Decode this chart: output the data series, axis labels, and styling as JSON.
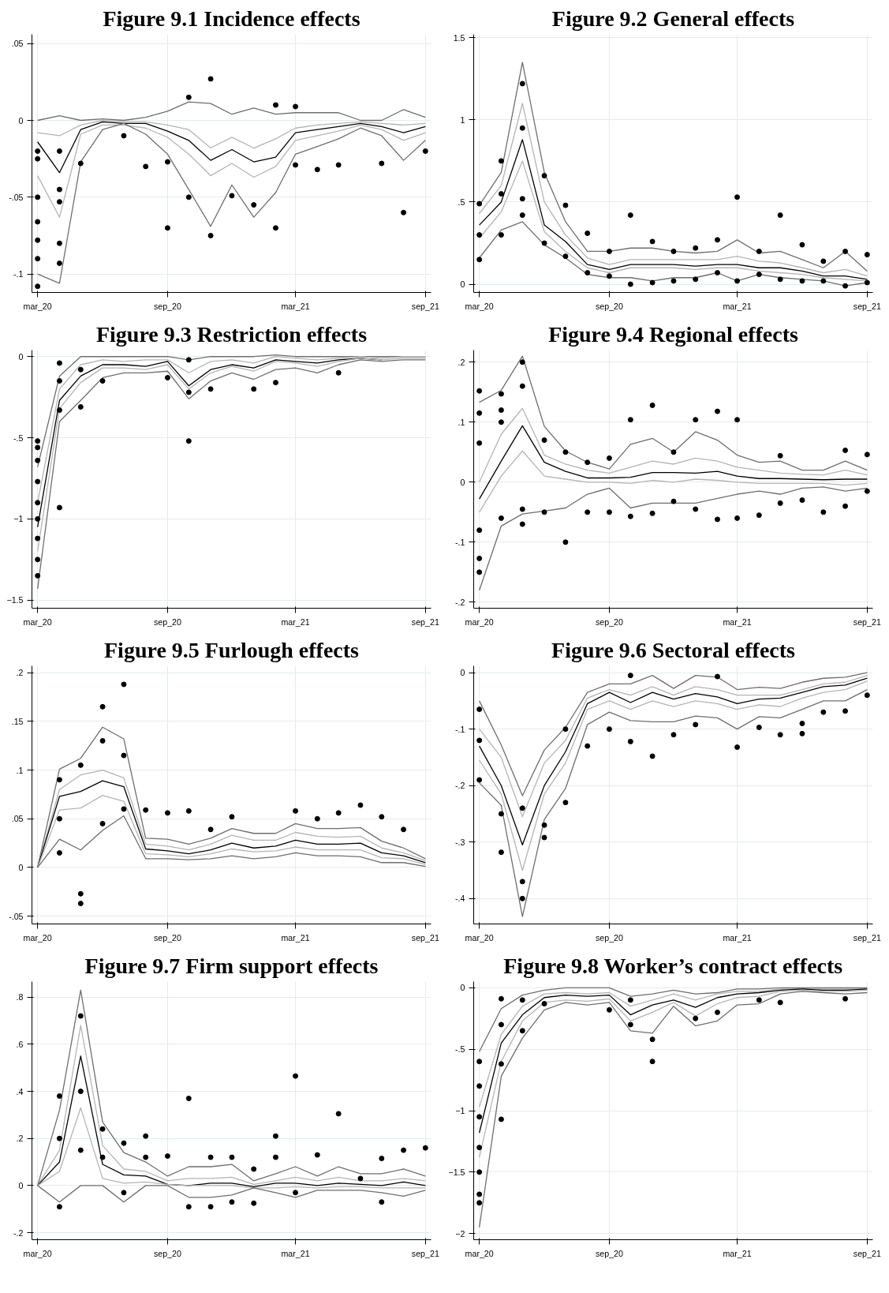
{
  "chart_data": [
    {
      "type": "line",
      "title": "Figure 9.1 Incidence effects",
      "x": [
        "2020-03",
        "2020-04",
        "2020-05",
        "2020-06",
        "2020-07",
        "2020-08",
        "2020-09",
        "2020-10",
        "2020-11",
        "2020-12",
        "2021-01",
        "2021-02",
        "2021-03",
        "2021-04",
        "2021-05",
        "2021-06",
        "2021-07",
        "2021-08",
        "2021-09"
      ],
      "xlim": [
        "2020-02-22",
        "2021-09-09"
      ],
      "xticks": [
        {
          "value": "2020-03",
          "label": "mar_20"
        },
        {
          "value": "2020-09",
          "label": "sep_20"
        },
        {
          "value": "2021-03",
          "label": "mar_21"
        },
        {
          "value": "2021-09",
          "label": "sep_21"
        }
      ],
      "ylim": [
        -0.112,
        0.056
      ],
      "yticks": [
        {
          "value": -0.1,
          "label": "-.1"
        },
        {
          "value": -0.05,
          "label": "-.05"
        },
        0,
        {
          "value": 0.05,
          "label": ".05"
        }
      ],
      "grid": true,
      "series": [
        {
          "color": "#6e6e6e",
          "values": [
            0.0,
            0.003,
            0,
            0.001,
            0,
            0.002,
            0.006,
            0.012,
            0.011,
            0.004,
            0.008,
            0.004,
            0.005,
            0.005,
            0.005,
            0,
            0,
            0.007,
            0.002
          ]
        },
        {
          "color": "#b4b4b4",
          "values": [
            -0.008,
            -0.01,
            -0.003,
            0,
            -0.001,
            -0.001,
            -0.003,
            -0.006,
            -0.018,
            -0.011,
            -0.018,
            -0.012,
            -0.005,
            -0.003,
            -0.002,
            -0.001,
            -0.002,
            -0.003,
            -0.002
          ]
        },
        {
          "color": "#000000",
          "values": [
            -0.014,
            -0.034,
            -0.006,
            -0.001,
            -0.002,
            -0.002,
            -0.007,
            -0.013,
            -0.026,
            -0.019,
            -0.027,
            -0.024,
            -0.008,
            -0.006,
            -0.004,
            -0.002,
            -0.004,
            -0.008,
            -0.004
          ]
        },
        {
          "color": "#b4b4b4",
          "values": [
            -0.036,
            -0.063,
            -0.009,
            -0.003,
            -0.003,
            -0.005,
            -0.011,
            -0.022,
            -0.036,
            -0.028,
            -0.037,
            -0.03,
            -0.013,
            -0.01,
            -0.007,
            -0.003,
            -0.006,
            -0.013,
            -0.008
          ]
        },
        {
          "color": "#6e6e6e",
          "values": [
            -0.1,
            -0.106,
            -0.027,
            -0.006,
            -0.002,
            -0.009,
            -0.022,
            -0.045,
            -0.069,
            -0.042,
            -0.063,
            -0.047,
            -0.022,
            -0.017,
            -0.012,
            -0.005,
            -0.01,
            -0.026,
            -0.013
          ]
        },
        {
          "type": "scatter",
          "marker": "circle",
          "color": "#000000",
          "x": [
            "2020-03",
            "2020-03",
            "2020-03",
            "2020-03",
            "2020-03",
            "2020-03",
            "2020-03",
            "2020-04",
            "2020-04",
            "2020-04",
            "2020-04",
            "2020-04",
            "2020-05",
            "2020-07",
            "2020-08",
            "2020-09",
            "2020-09",
            "2020-10",
            "2020-10",
            "2020-11",
            "2020-11",
            "2020-12",
            "2021-01",
            "2021-02",
            "2021-02",
            "2021-03",
            "2021-03",
            "2021-04",
            "2021-05",
            "2021-07",
            "2021-08",
            "2021-09"
          ],
          "values": [
            -0.108,
            -0.09,
            -0.078,
            -0.066,
            -0.05,
            -0.025,
            -0.02,
            -0.093,
            -0.08,
            -0.045,
            -0.02,
            -0.053,
            -0.028,
            -0.01,
            -0.03,
            -0.07,
            -0.027,
            0.015,
            -0.05,
            0.027,
            -0.075,
            -0.049,
            -0.055,
            -0.07,
            0.01,
            -0.029,
            0.009,
            -0.032,
            -0.029,
            -0.028,
            -0.06,
            -0.02
          ]
        }
      ]
    },
    {
      "type": "line",
      "title": "Figure 9.2 General effects",
      "x": [
        "2020-03",
        "2020-04",
        "2020-05",
        "2020-06",
        "2020-07",
        "2020-08",
        "2020-09",
        "2020-10",
        "2020-11",
        "2020-12",
        "2021-01",
        "2021-02",
        "2021-03",
        "2021-04",
        "2021-05",
        "2021-06",
        "2021-07",
        "2021-08",
        "2021-09"
      ],
      "xlim": [
        "2020-02-22",
        "2021-09-09"
      ],
      "xticks": [
        {
          "value": "2020-03",
          "label": "mar_20"
        },
        {
          "value": "2020-09",
          "label": "sep_20"
        },
        {
          "value": "2021-03",
          "label": "mar_21"
        },
        {
          "value": "2021-09",
          "label": "sep_21"
        }
      ],
      "ylim": [
        -0.05,
        1.52
      ],
      "yticks": [
        0,
        {
          "value": 0.5,
          "label": ".5"
        },
        1,
        1.5
      ],
      "grid": true,
      "series": [
        {
          "color": "#6e6e6e",
          "values": [
            0.48,
            0.68,
            1.35,
            0.68,
            0.38,
            0.2,
            0.2,
            0.22,
            0.22,
            0.2,
            0.19,
            0.2,
            0.27,
            0.19,
            0.2,
            0.15,
            0.1,
            0.2,
            0.08
          ]
        },
        {
          "color": "#b4b4b4",
          "values": [
            0.43,
            0.6,
            1.1,
            0.5,
            0.3,
            0.16,
            0.12,
            0.15,
            0.15,
            0.15,
            0.15,
            0.15,
            0.17,
            0.14,
            0.13,
            0.1,
            0.07,
            0.09,
            0.05
          ]
        },
        {
          "color": "#000000",
          "values": [
            0.36,
            0.5,
            0.88,
            0.36,
            0.26,
            0.12,
            0.09,
            0.12,
            0.12,
            0.12,
            0.11,
            0.12,
            0.12,
            0.1,
            0.1,
            0.08,
            0.05,
            0.05,
            0.03
          ]
        },
        {
          "color": "#b4b4b4",
          "values": [
            0.28,
            0.44,
            0.75,
            0.32,
            0.2,
            0.1,
            0.07,
            0.1,
            0.1,
            0.1,
            0.09,
            0.1,
            0.1,
            0.08,
            0.07,
            0.06,
            0.04,
            0.03,
            0.02
          ]
        },
        {
          "color": "#6e6e6e",
          "values": [
            0.16,
            0.33,
            0.38,
            0.24,
            0.16,
            0.06,
            0.04,
            0.04,
            0.02,
            0.04,
            0.04,
            0.07,
            0.02,
            0.06,
            0.04,
            0.03,
            0.02,
            -0.01,
            0.01
          ]
        },
        {
          "type": "scatter",
          "marker": "circle",
          "color": "#000000",
          "x": [
            "2020-03",
            "2020-03",
            "2020-03",
            "2020-04",
            "2020-04",
            "2020-04",
            "2020-05",
            "2020-05",
            "2020-05",
            "2020-05",
            "2020-06",
            "2020-06",
            "2020-07",
            "2020-07",
            "2020-08",
            "2020-08",
            "2020-09",
            "2020-09",
            "2020-10",
            "2020-10",
            "2020-11",
            "2020-11",
            "2020-12",
            "2020-12",
            "2021-01",
            "2021-01",
            "2021-02",
            "2021-02",
            "2021-03",
            "2021-03",
            "2021-04",
            "2021-04",
            "2021-05",
            "2021-05",
            "2021-06",
            "2021-06",
            "2021-07",
            "2021-07",
            "2021-08",
            "2021-08",
            "2021-09",
            "2021-09"
          ],
          "values": [
            0.49,
            0.15,
            0.3,
            0.75,
            0.3,
            0.55,
            1.22,
            0.95,
            0.52,
            0.42,
            0.66,
            0.25,
            0.48,
            0.17,
            0.31,
            0.07,
            0.2,
            0.05,
            0.42,
            0.0,
            0.26,
            0.01,
            0.2,
            0.02,
            0.22,
            0.03,
            0.27,
            0.07,
            0.53,
            0.02,
            0.2,
            0.06,
            0.42,
            0.03,
            0.24,
            0.02,
            0.14,
            0.02,
            0.2,
            -0.01,
            0.18,
            0.01
          ]
        }
      ]
    },
    {
      "type": "line",
      "title": "Figure 9.3 Restriction effects",
      "x": [
        "2020-03",
        "2020-04",
        "2020-05",
        "2020-06",
        "2020-07",
        "2020-08",
        "2020-09",
        "2020-10",
        "2020-11",
        "2020-12",
        "2021-01",
        "2021-02",
        "2021-03",
        "2021-04",
        "2021-05",
        "2021-06",
        "2021-07",
        "2021-08",
        "2021-09"
      ],
      "xlim": [
        "2020-02-22",
        "2021-09-09"
      ],
      "xticks": [
        {
          "value": "2020-03",
          "label": "mar_20"
        },
        {
          "value": "2020-09",
          "label": "sep_20"
        },
        {
          "value": "2021-03",
          "label": "mar_21"
        },
        {
          "value": "2021-09",
          "label": "sep_21"
        }
      ],
      "ylim": [
        -1.55,
        0.04
      ],
      "yticks": [
        -1.5,
        -1,
        {
          "value": -0.5,
          "label": "-.5"
        },
        0
      ],
      "grid": true,
      "series": [
        {
          "color": "#6e6e6e",
          "values": [
            -0.68,
            -0.12,
            0,
            0,
            0,
            0,
            0,
            -0.02,
            0,
            0,
            0,
            0.01,
            0,
            0,
            0,
            0,
            0,
            0,
            0
          ]
        },
        {
          "color": "#b4b4b4",
          "values": [
            -0.9,
            -0.2,
            -0.05,
            -0.02,
            -0.03,
            -0.02,
            -0.02,
            -0.1,
            -0.03,
            -0.02,
            -0.04,
            0,
            -0.01,
            -0.02,
            -0.01,
            0,
            -0.01,
            0,
            0
          ]
        },
        {
          "color": "#000000",
          "values": [
            -1.05,
            -0.27,
            -0.12,
            -0.05,
            -0.05,
            -0.06,
            -0.03,
            -0.18,
            -0.08,
            -0.05,
            -0.07,
            -0.02,
            -0.03,
            -0.04,
            -0.02,
            -0.01,
            -0.02,
            null,
            null
          ]
        },
        {
          "color": "#b4b4b4",
          "values": [
            -1.2,
            -0.32,
            -0.16,
            -0.07,
            -0.07,
            -0.08,
            -0.05,
            -0.2,
            -0.1,
            -0.06,
            -0.09,
            -0.03,
            -0.04,
            -0.06,
            -0.03,
            -0.01,
            -0.02,
            -0.01,
            -0.01
          ]
        },
        {
          "color": "#6e6e6e",
          "values": [
            -1.43,
            -0.4,
            -0.27,
            -0.13,
            -0.1,
            -0.1,
            -0.09,
            -0.26,
            -0.15,
            -0.1,
            -0.14,
            -0.08,
            -0.07,
            -0.1,
            -0.05,
            -0.02,
            -0.03,
            -0.02,
            -0.02
          ]
        },
        {
          "type": "scatter",
          "marker": "circle",
          "color": "#000000",
          "x": [
            "2020-03",
            "2020-03",
            "2020-03",
            "2020-03",
            "2020-03",
            "2020-03",
            "2020-03",
            "2020-03",
            "2020-03",
            "2020-04",
            "2020-04",
            "2020-04",
            "2020-04",
            "2020-05",
            "2020-05",
            "2020-06",
            "2020-09",
            "2020-10",
            "2020-10",
            "2020-10",
            "2020-11",
            "2021-01",
            "2021-02",
            "2021-05"
          ],
          "values": [
            -0.52,
            -0.56,
            -0.64,
            -0.77,
            -0.9,
            -1.0,
            -1.12,
            -1.25,
            -1.35,
            -0.04,
            -0.93,
            -0.15,
            -0.33,
            -0.31,
            -0.08,
            -0.15,
            -0.13,
            -0.52,
            -0.22,
            -0.02,
            -0.2,
            -0.2,
            -0.16,
            -0.1
          ]
        }
      ]
    },
    {
      "type": "line",
      "title": "Figure 9.4 Regional effects",
      "x": [
        "2020-03",
        "2020-04",
        "2020-05",
        "2020-06",
        "2020-07",
        "2020-08",
        "2020-09",
        "2020-10",
        "2020-11",
        "2020-12",
        "2021-01",
        "2021-02",
        "2021-03",
        "2021-04",
        "2021-05",
        "2021-06",
        "2021-07",
        "2021-08",
        "2021-09"
      ],
      "xlim": [
        "2020-02-22",
        "2021-09-09"
      ],
      "xticks": [
        {
          "value": "2020-03",
          "label": "mar_20"
        },
        {
          "value": "2020-09",
          "label": "sep_20"
        },
        {
          "value": "2021-03",
          "label": "mar_21"
        },
        {
          "value": "2021-09",
          "label": "sep_21"
        }
      ],
      "ylim": [
        -0.21,
        0.22
      ],
      "yticks": [
        {
          "value": -0.2,
          "label": "-.2"
        },
        {
          "value": -0.1,
          "label": "-.1"
        },
        0,
        {
          "value": 0.1,
          "label": ".1"
        },
        {
          "value": 0.2,
          "label": ".2"
        }
      ],
      "grid": true,
      "series": [
        {
          "color": "#6e6e6e",
          "values": [
            0.133,
            0.153,
            0.21,
            0.093,
            0.052,
            0.033,
            0.022,
            0.063,
            0.073,
            0.05,
            0.084,
            0.07,
            0.045,
            0.033,
            0.035,
            0.02,
            0.02,
            0.035,
            0.02
          ]
        },
        {
          "color": "#b4b4b4",
          "values": [
            0.0,
            0.08,
            0.123,
            0.045,
            0.03,
            0.02,
            0.015,
            0.025,
            0.035,
            0.03,
            0.04,
            0.035,
            0.025,
            0.02,
            0.015,
            0.013,
            0.012,
            0.02,
            0.012
          ]
        },
        {
          "color": "#000000",
          "values": [
            -0.028,
            0.035,
            0.094,
            0.033,
            0.018,
            0.007,
            0.007,
            0.008,
            0.016,
            0.016,
            0.015,
            0.018,
            0.01,
            0.006,
            0.006,
            0.005,
            0.004,
            0.005,
            0.005
          ]
        },
        {
          "color": "#b4b4b4",
          "values": [
            -0.05,
            0.01,
            0.052,
            0.01,
            0.005,
            0.0,
            0.0,
            -0.002,
            0.003,
            0.0,
            0.005,
            0.003,
            0.0,
            -0.002,
            -0.002,
            -0.002,
            -0.002,
            -0.005,
            -0.002
          ]
        },
        {
          "color": "#6e6e6e",
          "values": [
            -0.18,
            -0.073,
            -0.053,
            -0.048,
            -0.043,
            -0.02,
            -0.01,
            -0.043,
            -0.035,
            -0.035,
            -0.035,
            -0.027,
            -0.02,
            -0.015,
            -0.02,
            -0.01,
            -0.008,
            -0.015,
            -0.01
          ]
        },
        {
          "type": "scatter",
          "marker": "circle",
          "color": "#000000",
          "x": [
            "2020-03",
            "2020-03",
            "2020-03",
            "2020-03",
            "2020-03",
            "2020-03",
            "2020-04",
            "2020-04",
            "2020-04",
            "2020-04",
            "2020-05",
            "2020-05",
            "2020-05",
            "2020-05",
            "2020-06",
            "2020-06",
            "2020-07",
            "2020-07",
            "2020-08",
            "2020-08",
            "2020-09",
            "2020-09",
            "2020-10",
            "2020-10",
            "2020-11",
            "2020-11",
            "2020-12",
            "2020-12",
            "2021-01",
            "2021-01",
            "2021-02",
            "2021-02",
            "2021-03",
            "2021-03",
            "2021-04",
            "2021-05",
            "2021-05",
            "2021-06",
            "2021-07",
            "2021-08",
            "2021-08",
            "2021-09",
            "2021-09"
          ],
          "values": [
            0.152,
            0.115,
            0.065,
            -0.08,
            -0.127,
            -0.15,
            0.147,
            0.12,
            0.1,
            -0.06,
            0.2,
            0.16,
            -0.045,
            -0.07,
            0.07,
            -0.05,
            0.05,
            -0.1,
            -0.05,
            0.033,
            0.04,
            -0.05,
            0.104,
            -0.057,
            0.128,
            -0.052,
            0.05,
            -0.032,
            0.104,
            -0.045,
            0.118,
            -0.062,
            0.104,
            -0.06,
            -0.055,
            0.044,
            -0.035,
            -0.03,
            -0.05,
            0.053,
            -0.04,
            0.046,
            -0.015
          ]
        }
      ]
    },
    {
      "type": "line",
      "title": "Figure 9.5 Furlough effects",
      "x": [
        "2020-03",
        "2020-04",
        "2020-05",
        "2020-06",
        "2020-07",
        "2020-08",
        "2020-09",
        "2020-10",
        "2020-11",
        "2020-12",
        "2021-01",
        "2021-02",
        "2021-03",
        "2021-04",
        "2021-05",
        "2021-06",
        "2021-07",
        "2021-08",
        "2021-09"
      ],
      "xlim": [
        "2020-02-22",
        "2021-09-09"
      ],
      "xticks": [
        {
          "value": "2020-03",
          "label": "mar_20"
        },
        {
          "value": "2020-09",
          "label": "sep_20"
        },
        {
          "value": "2021-03",
          "label": "mar_21"
        },
        {
          "value": "2021-09",
          "label": "sep_21"
        }
      ],
      "ylim": [
        -0.058,
        0.207
      ],
      "yticks": [
        {
          "value": -0.05,
          "label": "-.05"
        },
        0,
        {
          "value": 0.05,
          "label": ".05"
        },
        {
          "value": 0.1,
          "label": ".1"
        },
        {
          "value": 0.15,
          "label": ".15"
        },
        {
          "value": 0.2,
          "label": ".2"
        }
      ],
      "grid": true,
      "series": [
        {
          "color": "#6e6e6e",
          "values": [
            0,
            0.101,
            0.112,
            0.144,
            0.132,
            0.03,
            0.029,
            0.024,
            0.03,
            0.04,
            0.035,
            0.035,
            0.045,
            0.04,
            0.04,
            0.041,
            0.027,
            0.02,
            0.009
          ]
        },
        {
          "color": "#b4b4b4",
          "values": [
            0,
            0.08,
            0.095,
            0.1,
            0.092,
            0.024,
            0.022,
            0.018,
            0.024,
            0.033,
            0.028,
            0.028,
            0.036,
            0.032,
            0.031,
            0.032,
            0.02,
            0.015,
            0.007
          ]
        },
        {
          "color": "#000000",
          "values": [
            0,
            0.073,
            0.078,
            0.089,
            0.083,
            0.019,
            0.017,
            0.014,
            0.018,
            0.025,
            0.02,
            0.022,
            0.028,
            0.024,
            0.024,
            0.025,
            0.015,
            0.012,
            0.005
          ]
        },
        {
          "color": "#b4b4b4",
          "values": [
            0,
            0.059,
            0.061,
            0.074,
            0.068,
            0.014,
            0.013,
            0.011,
            0.014,
            0.019,
            0.016,
            0.017,
            0.021,
            0.018,
            0.018,
            0.018,
            0.01,
            0.009,
            0.003
          ]
        },
        {
          "color": "#6e6e6e",
          "values": [
            0,
            0.029,
            0.018,
            0.038,
            0.053,
            0.009,
            0.009,
            0.008,
            0.009,
            0.012,
            0.009,
            0.011,
            0.015,
            0.012,
            0.012,
            0.011,
            0.005,
            0.005,
            0.001
          ]
        },
        {
          "type": "scatter",
          "marker": "circle",
          "color": "#000000",
          "x": [
            "2020-04",
            "2020-04",
            "2020-04",
            "2020-05",
            "2020-05",
            "2020-05",
            "2020-06",
            "2020-06",
            "2020-06",
            "2020-07",
            "2020-07",
            "2020-07",
            "2020-08",
            "2020-09",
            "2020-10",
            "2020-11",
            "2020-12",
            "2021-03",
            "2021-04",
            "2021-05",
            "2021-06",
            "2021-07",
            "2021-08"
          ],
          "values": [
            0.09,
            0.015,
            0.05,
            0.105,
            -0.027,
            -0.037,
            0.165,
            0.13,
            0.045,
            0.188,
            0.115,
            0.06,
            0.059,
            0.056,
            0.058,
            0.039,
            0.052,
            0.058,
            0.05,
            0.056,
            0.064,
            0.052,
            0.039
          ]
        }
      ]
    },
    {
      "type": "line",
      "title": "Figure 9.6 Sectoral effects",
      "x": [
        "2020-03",
        "2020-04",
        "2020-05",
        "2020-06",
        "2020-07",
        "2020-08",
        "2020-09",
        "2020-10",
        "2020-11",
        "2020-12",
        "2021-01",
        "2021-02",
        "2021-03",
        "2021-04",
        "2021-05",
        "2021-06",
        "2021-07",
        "2021-08",
        "2021-09"
      ],
      "xlim": [
        "2020-02-22",
        "2021-09-09"
      ],
      "xticks": [
        {
          "value": "2020-03",
          "label": "mar_20"
        },
        {
          "value": "2020-09",
          "label": "sep_20"
        },
        {
          "value": "2021-03",
          "label": "mar_21"
        },
        {
          "value": "2021-09",
          "label": "sep_21"
        }
      ],
      "ylim": [
        -0.445,
        0.012
      ],
      "yticks": [
        {
          "value": -0.4,
          "label": "-.4"
        },
        {
          "value": -0.3,
          "label": "-.3"
        },
        {
          "value": -0.2,
          "label": "-.2"
        },
        {
          "value": -0.1,
          "label": "-.1"
        },
        0
      ],
      "grid": true,
      "series": [
        {
          "color": "#6e6e6e",
          "values": [
            -0.05,
            -0.128,
            -0.218,
            -0.137,
            -0.097,
            -0.035,
            -0.02,
            -0.02,
            -0.005,
            -0.028,
            -0.005,
            -0.008,
            -0.03,
            -0.026,
            -0.028,
            -0.017,
            -0.01,
            -0.008,
            0.0
          ]
        },
        {
          "color": "#b4b4b4",
          "values": [
            -0.1,
            -0.15,
            -0.255,
            -0.16,
            -0.12,
            -0.045,
            -0.03,
            -0.04,
            -0.025,
            -0.04,
            -0.025,
            -0.03,
            -0.04,
            -0.04,
            -0.04,
            -0.03,
            -0.02,
            -0.017,
            -0.005
          ]
        },
        {
          "color": "#000000",
          "values": [
            -0.13,
            -0.2,
            -0.305,
            -0.2,
            -0.14,
            -0.055,
            -0.035,
            -0.053,
            -0.035,
            -0.047,
            -0.037,
            -0.043,
            -0.055,
            -0.047,
            -0.045,
            -0.035,
            -0.025,
            -0.022,
            -0.01
          ]
        },
        {
          "color": "#b4b4b4",
          "values": [
            -0.155,
            -0.215,
            -0.35,
            -0.215,
            -0.16,
            -0.065,
            -0.05,
            -0.065,
            -0.05,
            -0.06,
            -0.05,
            -0.055,
            -0.065,
            -0.057,
            -0.06,
            -0.045,
            -0.035,
            -0.03,
            -0.015
          ]
        },
        {
          "color": "#6e6e6e",
          "values": [
            -0.195,
            -0.235,
            -0.432,
            -0.26,
            -0.205,
            -0.092,
            -0.07,
            -0.085,
            -0.087,
            -0.087,
            -0.077,
            -0.08,
            -0.1,
            -0.078,
            -0.08,
            -0.065,
            -0.05,
            -0.05,
            -0.03
          ]
        },
        {
          "type": "scatter",
          "marker": "circle",
          "color": "#000000",
          "x": [
            "2020-03",
            "2020-03",
            "2020-03",
            "2020-04",
            "2020-04",
            "2020-05",
            "2020-05",
            "2020-05",
            "2020-06",
            "2020-06",
            "2020-07",
            "2020-07",
            "2020-08",
            "2020-09",
            "2020-10",
            "2020-10",
            "2020-11",
            "2020-12",
            "2021-01",
            "2021-02",
            "2021-03",
            "2021-04",
            "2021-05",
            "2021-06",
            "2021-06",
            "2021-07",
            "2021-08",
            "2021-09"
          ],
          "values": [
            -0.065,
            -0.12,
            -0.19,
            -0.318,
            -0.25,
            -0.24,
            -0.4,
            -0.37,
            -0.292,
            -0.27,
            -0.1,
            -0.23,
            -0.13,
            -0.1,
            -0.005,
            -0.122,
            -0.148,
            -0.11,
            -0.092,
            -0.007,
            -0.132,
            -0.097,
            -0.11,
            -0.108,
            -0.09,
            -0.07,
            -0.068,
            -0.04
          ]
        }
      ]
    },
    {
      "type": "line",
      "title": "Figure 9.7 Firm support effects",
      "x": [
        "2020-03",
        "2020-04",
        "2020-05",
        "2020-06",
        "2020-07",
        "2020-08",
        "2020-09",
        "2020-10",
        "2020-11",
        "2020-12",
        "2021-01",
        "2021-02",
        "2021-03",
        "2021-04",
        "2021-05",
        "2021-06",
        "2021-07",
        "2021-08",
        "2021-09"
      ],
      "xlim": [
        "2020-02-22",
        "2021-09-09"
      ],
      "xticks": [
        {
          "value": "2020-03",
          "label": "mar_20"
        },
        {
          "value": "2020-09",
          "label": "sep_20"
        },
        {
          "value": "2021-03",
          "label": "mar_21"
        },
        {
          "value": "2021-09",
          "label": "sep_21"
        }
      ],
      "ylim": [
        -0.23,
        0.866
      ],
      "yticks": [
        {
          "value": -0.2,
          "label": "-.2"
        },
        0,
        {
          "value": 0.2,
          "label": ".2"
        },
        {
          "value": 0.4,
          "label": ".4"
        },
        {
          "value": 0.6,
          "label": ".6"
        },
        {
          "value": 0.8,
          "label": ".8"
        }
      ],
      "grid": true,
      "series": [
        {
          "color": "#6e6e6e",
          "values": [
            0,
            0.32,
            0.83,
            0.27,
            0.14,
            0.1,
            0.04,
            0.08,
            0.08,
            0.09,
            0.02,
            0.05,
            0.08,
            0.04,
            0.08,
            0.05,
            0.05,
            0.07,
            0.04
          ]
        },
        {
          "color": "#b4b4b4",
          "values": [
            0,
            0.15,
            0.68,
            0.17,
            0.07,
            0.06,
            0.02,
            0.03,
            0.03,
            0.035,
            0.005,
            0.02,
            0.035,
            0.02,
            0.035,
            0.02,
            0.02,
            0.03,
            0.02
          ]
        },
        {
          "color": "#000000",
          "values": [
            0,
            0.1,
            0.55,
            0.09,
            0.045,
            0.04,
            0.005,
            0.0,
            0.01,
            0.01,
            -0.005,
            0.01,
            0.01,
            0.0,
            0.01,
            0.005,
            0.0,
            0.015,
            0.0
          ]
        },
        {
          "color": "#b4b4b4",
          "values": [
            0,
            0.06,
            0.33,
            0.03,
            0.01,
            0.015,
            0.005,
            0.0,
            0.0,
            0.0,
            -0.01,
            -0.01,
            -0.005,
            -0.01,
            -0.005,
            -0.005,
            -0.01,
            -0.01,
            -0.01
          ]
        },
        {
          "color": "#6e6e6e",
          "values": [
            0,
            -0.07,
            0.0,
            0.0,
            -0.07,
            0.0,
            0.0,
            -0.05,
            -0.05,
            -0.04,
            -0.01,
            -0.03,
            -0.05,
            -0.02,
            -0.02,
            -0.02,
            -0.03,
            -0.045,
            -0.02
          ]
        },
        {
          "type": "scatter",
          "marker": "circle",
          "color": "#000000",
          "x": [
            "2020-04",
            "2020-04",
            "2020-04",
            "2020-05",
            "2020-05",
            "2020-05",
            "2020-06",
            "2020-06",
            "2020-07",
            "2020-07",
            "2020-08",
            "2020-08",
            "2020-09",
            "2020-10",
            "2020-10",
            "2020-11",
            "2020-11",
            "2020-12",
            "2020-12",
            "2021-01",
            "2021-01",
            "2021-02",
            "2021-02",
            "2021-03",
            "2021-03",
            "2021-04",
            "2021-05",
            "2021-06",
            "2021-07",
            "2021-07",
            "2021-08",
            "2021-09"
          ],
          "values": [
            0.38,
            0.2,
            -0.09,
            0.72,
            0.15,
            0.4,
            0.24,
            0.12,
            0.18,
            -0.03,
            0.21,
            0.12,
            0.125,
            0.37,
            -0.09,
            0.12,
            -0.09,
            0.12,
            -0.07,
            0.07,
            -0.075,
            0.21,
            0.12,
            0.465,
            -0.03,
            0.13,
            0.305,
            0.03,
            0.115,
            -0.07,
            0.15,
            0.16
          ]
        }
      ]
    },
    {
      "type": "line",
      "title": "Figure 9.8 Worker’s contract effects",
      "x": [
        "2020-03",
        "2020-04",
        "2020-05",
        "2020-06",
        "2020-07",
        "2020-08",
        "2020-09",
        "2020-10",
        "2020-11",
        "2020-12",
        "2021-01",
        "2021-02",
        "2021-03",
        "2021-04",
        "2021-05",
        "2021-06",
        "2021-07",
        "2021-08",
        "2021-09"
      ],
      "xlim": [
        "2020-02-22",
        "2021-09-09"
      ],
      "xticks": [
        {
          "value": "2020-03",
          "label": "mar_20"
        },
        {
          "value": "2020-09",
          "label": "sep_20"
        },
        {
          "value": "2021-03",
          "label": "mar_21"
        },
        {
          "value": "2021-09",
          "label": "sep_21"
        }
      ],
      "ylim": [
        -2.05,
        0.05
      ],
      "yticks": [
        -2,
        -1.5,
        -1,
        {
          "value": -0.5,
          "label": "-.5"
        },
        0
      ],
      "grid": true,
      "series": [
        {
          "color": "#6e6e6e",
          "values": [
            -0.52,
            -0.17,
            -0.06,
            -0.02,
            0,
            0,
            0,
            -0.07,
            -0.05,
            -0.02,
            -0.05,
            -0.04,
            -0.01,
            -0.01,
            0,
            0,
            0,
            0,
            0
          ]
        },
        {
          "color": "#b4b4b4",
          "values": [
            -0.97,
            -0.38,
            -0.15,
            -0.05,
            -0.04,
            -0.05,
            -0.04,
            -0.15,
            -0.1,
            -0.05,
            -0.1,
            -0.05,
            -0.03,
            -0.03,
            -0.01,
            -0.01,
            -0.01,
            -0.01,
            -0.01
          ]
        },
        {
          "color": "#000000",
          "values": [
            -1.18,
            -0.45,
            -0.22,
            -0.08,
            -0.06,
            -0.07,
            -0.06,
            -0.22,
            -0.14,
            -0.1,
            -0.16,
            -0.08,
            -0.05,
            -0.04,
            -0.02,
            -0.01,
            -0.02,
            -0.02,
            -0.01
          ]
        },
        {
          "color": "#b4b4b4",
          "values": [
            -1.38,
            -0.6,
            -0.27,
            -0.12,
            -0.1,
            -0.11,
            -0.09,
            -0.27,
            -0.2,
            -0.12,
            -0.23,
            -0.13,
            -0.08,
            -0.07,
            -0.03,
            -0.02,
            -0.03,
            -0.03,
            -0.02
          ]
        },
        {
          "color": "#6e6e6e",
          "values": [
            -1.95,
            -0.72,
            -0.41,
            -0.18,
            -0.12,
            -0.14,
            -0.12,
            -0.35,
            -0.37,
            -0.15,
            -0.31,
            -0.27,
            -0.14,
            -0.13,
            -0.05,
            -0.03,
            -0.04,
            -0.05,
            -0.04
          ]
        },
        {
          "type": "scatter",
          "marker": "circle",
          "color": "#000000",
          "x": [
            "2020-03",
            "2020-03",
            "2020-03",
            "2020-03",
            "2020-03",
            "2020-03",
            "2020-03",
            "2020-04",
            "2020-04",
            "2020-04",
            "2020-04",
            "2020-05",
            "2020-05",
            "2020-06",
            "2020-09",
            "2020-10",
            "2020-10",
            "2020-11",
            "2020-11",
            "2021-01",
            "2021-02",
            "2021-04",
            "2021-05",
            "2021-08"
          ],
          "values": [
            -0.6,
            -0.8,
            -1.05,
            -1.3,
            -1.5,
            -1.68,
            -1.75,
            -0.09,
            -1.07,
            -0.62,
            -0.3,
            -0.35,
            -0.1,
            -0.13,
            -0.18,
            -0.3,
            -0.1,
            -0.6,
            -0.42,
            -0.25,
            -0.2,
            -0.1,
            -0.12,
            -0.09
          ]
        }
      ]
    }
  ]
}
